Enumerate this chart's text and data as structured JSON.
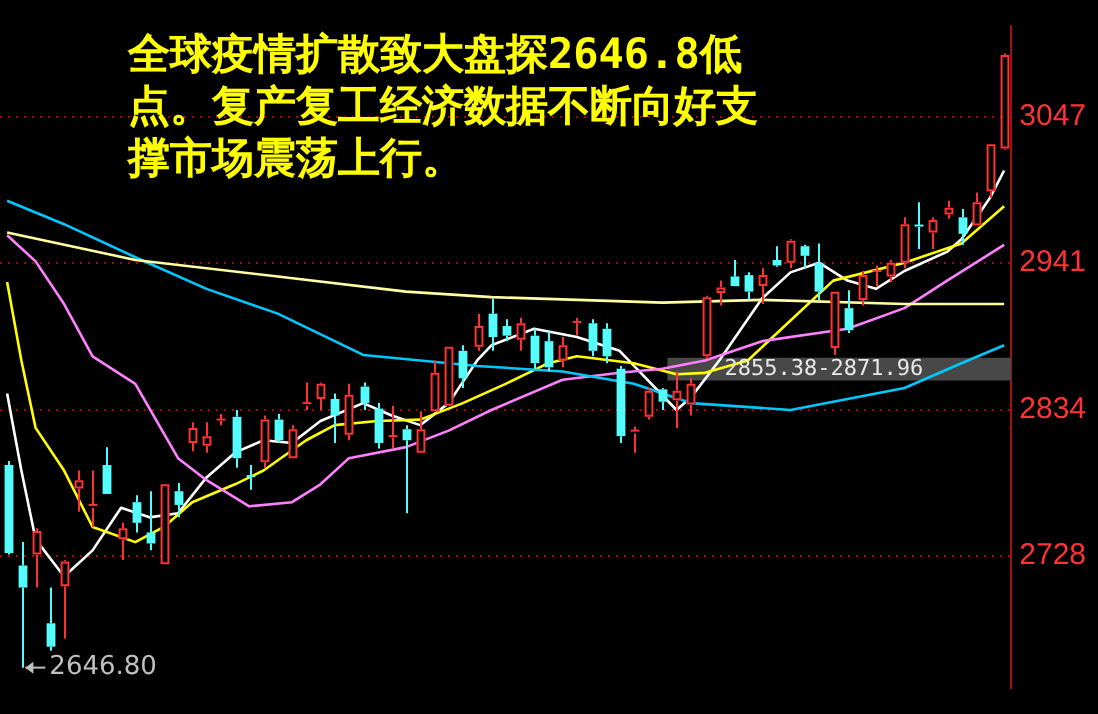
{
  "chart_data": {
    "type": "candlestick",
    "title": "全球疫情扩散致大盘探2646.8低点。复产复工经济数据不断向好支撑市场震荡上行。",
    "categories": [
      null,
      null,
      null,
      null,
      null,
      null,
      null,
      null,
      null,
      null,
      null,
      null,
      null,
      null,
      null,
      null,
      null,
      null,
      null,
      null,
      null,
      null,
      null,
      null,
      null,
      null,
      null,
      null,
      null,
      null,
      null,
      null,
      null,
      null,
      null,
      null,
      null,
      null,
      null,
      null,
      null,
      null,
      null,
      null,
      null,
      null,
      null,
      null,
      null,
      null,
      null,
      null,
      null,
      null,
      null,
      null,
      null,
      null,
      null,
      null,
      null,
      null,
      null,
      null,
      null,
      null,
      null,
      null,
      null,
      null,
      null
    ],
    "ohlc": [
      [
        2794,
        2797,
        2729,
        2730
      ],
      [
        2721,
        2738,
        2646.8,
        2705
      ],
      [
        2729,
        2748,
        2705,
        2746
      ],
      [
        2679,
        2705,
        2659,
        2662
      ],
      [
        2706,
        2725,
        2668,
        2724
      ],
      [
        2777,
        2790,
        2760,
        2783
      ],
      [
        2763,
        2790,
        2749,
        2765
      ],
      [
        2794,
        2807,
        2773,
        2773
      ],
      [
        2740,
        2752,
        2725,
        2748
      ],
      [
        2767,
        2772,
        2745,
        2752
      ],
      [
        2745,
        2775,
        2732,
        2737
      ],
      [
        2722,
        2780,
        2722,
        2780
      ],
      [
        2775,
        2781,
        2756,
        2765
      ],
      [
        2810,
        2825,
        2804,
        2821
      ],
      [
        2808,
        2825,
        2803,
        2815
      ],
      [
        2826,
        2831,
        2823,
        2827
      ],
      [
        2829,
        2834,
        2792,
        2799
      ],
      [
        2786,
        2794,
        2776,
        2785
      ],
      [
        2796,
        2830,
        2792,
        2827
      ],
      [
        2827,
        2831,
        2810,
        2812
      ],
      [
        2799,
        2823,
        2799,
        2820
      ],
      [
        2837,
        2854,
        2834,
        2839
      ],
      [
        2842,
        2854,
        2834,
        2853
      ],
      [
        2842,
        2846,
        2810,
        2830
      ],
      [
        2816,
        2853,
        2812,
        2845
      ],
      [
        2851,
        2854,
        2834,
        2839
      ],
      [
        2835,
        2839,
        2806,
        2810
      ],
      [
        2814,
        2837,
        2806,
        2815
      ],
      [
        2820,
        2823,
        2759,
        2812
      ],
      [
        2803,
        2833,
        2803,
        2820
      ],
      [
        2833,
        2870,
        2833,
        2861
      ],
      [
        2837,
        2880,
        2837,
        2880
      ],
      [
        2877,
        2881,
        2850,
        2857
      ],
      [
        2880,
        2904,
        2877,
        2895
      ],
      [
        2904,
        2915,
        2877,
        2887
      ],
      [
        2895,
        2900,
        2884,
        2888
      ],
      [
        2885,
        2901,
        2877,
        2897
      ],
      [
        2888,
        2893,
        2864,
        2868
      ],
      [
        2884,
        2891,
        2862,
        2865
      ],
      [
        2870,
        2887,
        2865,
        2881
      ],
      [
        2897,
        2901,
        2888,
        2898
      ],
      [
        2897,
        2900,
        2873,
        2877
      ],
      [
        2893,
        2897,
        2868,
        2873
      ],
      [
        2864,
        2866,
        2810,
        2815
      ],
      [
        2817,
        2822,
        2803,
        2819
      ],
      [
        2829,
        2850,
        2827,
        2848
      ],
      [
        2849,
        2850,
        2834,
        2840
      ],
      [
        2841,
        2862,
        2821,
        2848
      ],
      [
        2838,
        2857,
        2830,
        2853
      ],
      [
        2873,
        2917,
        2871,
        2916
      ],
      [
        2919,
        2928,
        2910,
        2923
      ],
      [
        2931,
        2943,
        2924,
        2924
      ],
      [
        2932,
        2934,
        2914,
        2920
      ],
      [
        2924,
        2937,
        2911,
        2932
      ],
      [
        2943,
        2953,
        2938,
        2939
      ],
      [
        2941,
        2958,
        2937,
        2957
      ],
      [
        2953,
        2954,
        2937,
        2946
      ],
      [
        2941,
        2955,
        2914,
        2920
      ],
      [
        2879,
        2920,
        2874,
        2920
      ],
      [
        2908,
        2921,
        2890,
        2892
      ],
      [
        2914,
        2935,
        2910,
        2932
      ],
      [
        2934,
        2939,
        2924,
        2935
      ],
      [
        2931,
        2943,
        2927,
        2941
      ],
      [
        2941,
        2974,
        2937,
        2969
      ],
      [
        2968,
        2985,
        2951,
        2967
      ],
      [
        2963,
        2974,
        2951,
        2972
      ],
      [
        2976,
        2986,
        2973,
        2981
      ],
      [
        2974,
        2980,
        2954,
        2962
      ],
      [
        2968,
        2992,
        2968,
        2985
      ],
      [
        2993,
        3027,
        2988,
        3027
      ],
      [
        3024,
        3093,
        3023,
        3092
      ]
    ],
    "series": [
      {
        "type": "line",
        "color": "#ffffa0",
        "values": [
          2963,
          null,
          null,
          null,
          null,
          null,
          null,
          null,
          null,
          2943,
          null,
          null,
          null,
          null,
          null,
          null,
          null,
          null,
          null,
          2931,
          null,
          null,
          null,
          null,
          null,
          null,
          null,
          null,
          2920,
          null,
          null,
          null,
          null,
          null,
          2916,
          null,
          null,
          null,
          null,
          null,
          null,
          null,
          null,
          null,
          null,
          null,
          2912,
          null,
          null,
          null,
          null,
          null,
          null,
          2914,
          null,
          null,
          null,
          null,
          null,
          null,
          null,
          null,
          null,
          2911,
          null,
          null,
          null,
          null,
          null,
          null,
          2911
        ]
      },
      {
        "type": "line",
        "color": "#00c8ff",
        "values": [
          2986,
          null,
          null,
          null,
          2969,
          null,
          null,
          null,
          null,
          2945,
          null,
          null,
          null,
          null,
          2922,
          null,
          null,
          null,
          null,
          2904,
          null,
          null,
          null,
          null,
          null,
          2874,
          null,
          null,
          null,
          null,
          null,
          null,
          null,
          2866,
          null,
          null,
          null,
          null,
          null,
          2862,
          null,
          null,
          null,
          null,
          2853,
          null,
          null,
          null,
          2839,
          null,
          null,
          null,
          null,
          null,
          null,
          2834,
          null,
          null,
          null,
          null,
          null,
          null,
          null,
          2850,
          null,
          null,
          null,
          2868,
          null,
          null,
          2881
        ]
      },
      {
        "type": "line",
        "color": "#ff80ff",
        "values": [
          2961,
          null,
          2942,
          null,
          2911,
          null,
          2873,
          null,
          null,
          2853,
          null,
          null,
          2799,
          null,
          2783,
          null,
          null,
          2764,
          null,
          null,
          2767,
          null,
          2780,
          null,
          2799,
          null,
          null,
          null,
          2807,
          null,
          null,
          2819,
          null,
          null,
          2834,
          null,
          null,
          null,
          null,
          2856,
          null,
          null,
          null,
          2861,
          null,
          null,
          2864,
          null,
          null,
          2870,
          null,
          null,
          null,
          2884,
          null,
          null,
          null,
          null,
          null,
          2893,
          null,
          null,
          null,
          2908,
          null,
          null,
          2928,
          null,
          null,
          null,
          2954
        ]
      },
      {
        "type": "line",
        "color": "#ffff00",
        "values": [
          2927,
          2870,
          2821,
          null,
          2790,
          null,
          2749,
          null,
          null,
          2738,
          null,
          2749,
          null,
          2767,
          null,
          null,
          2780,
          null,
          2790,
          null,
          null,
          2812,
          null,
          2823,
          null,
          null,
          2826,
          null,
          null,
          2827,
          null,
          null,
          2839,
          null,
          null,
          2853,
          null,
          null,
          2868,
          null,
          2873,
          null,
          null,
          null,
          2868,
          null,
          null,
          2860,
          null,
          2861,
          null,
          null,
          2870,
          null,
          null,
          null,
          null,
          null,
          2928,
          null,
          null,
          null,
          null,
          2941,
          null,
          null,
          null,
          2955,
          null,
          null,
          2982
        ]
      },
      {
        "type": "line",
        "color": "#ffffff",
        "values": [
          2846,
          2790,
          2740,
          null,
          2713,
          null,
          2732,
          null,
          2763,
          null,
          2756,
          null,
          2759,
          null,
          2785,
          null,
          2803,
          null,
          2812,
          null,
          2810,
          null,
          2826,
          null,
          null,
          2839,
          null,
          2830,
          null,
          2823,
          null,
          2839,
          null,
          2870,
          2881,
          null,
          null,
          2893,
          null,
          null,
          2887,
          null,
          null,
          2877,
          null,
          null,
          null,
          2834,
          2843,
          null,
          2870,
          null,
          null,
          2915,
          null,
          2934,
          null,
          2941,
          null,
          2928,
          null,
          2922,
          null,
          2935,
          null,
          null,
          2949,
          2958,
          null,
          2988,
          3008
        ]
      }
    ],
    "ylim": [
      2632,
      3113
    ],
    "yticks": [
      2728,
      2834,
      2941,
      3047
    ],
    "grid": "y",
    "bands": [
      {
        "axis": "y",
        "from": 2855.38,
        "to": 2871.96,
        "label": "2855.38-2871.96",
        "color": "#484848"
      }
    ],
    "annotations": [
      "2646.80"
    ]
  }
}
